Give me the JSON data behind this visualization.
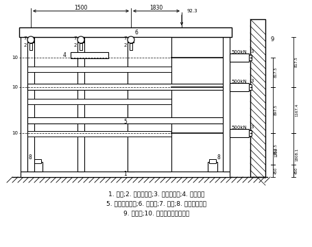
{
  "caption_lines": [
    "1. 试件;2. 竖向千斤顶;3. 伺服作动器;4. 分载梁；",
    "5. 纵向固定横梁;6. 加载梁;7. 辊轴;8. 基底固定梁；",
    "9. 反力墙;10. 试件与作动器连接杆"
  ],
  "bg_color": "#ffffff"
}
